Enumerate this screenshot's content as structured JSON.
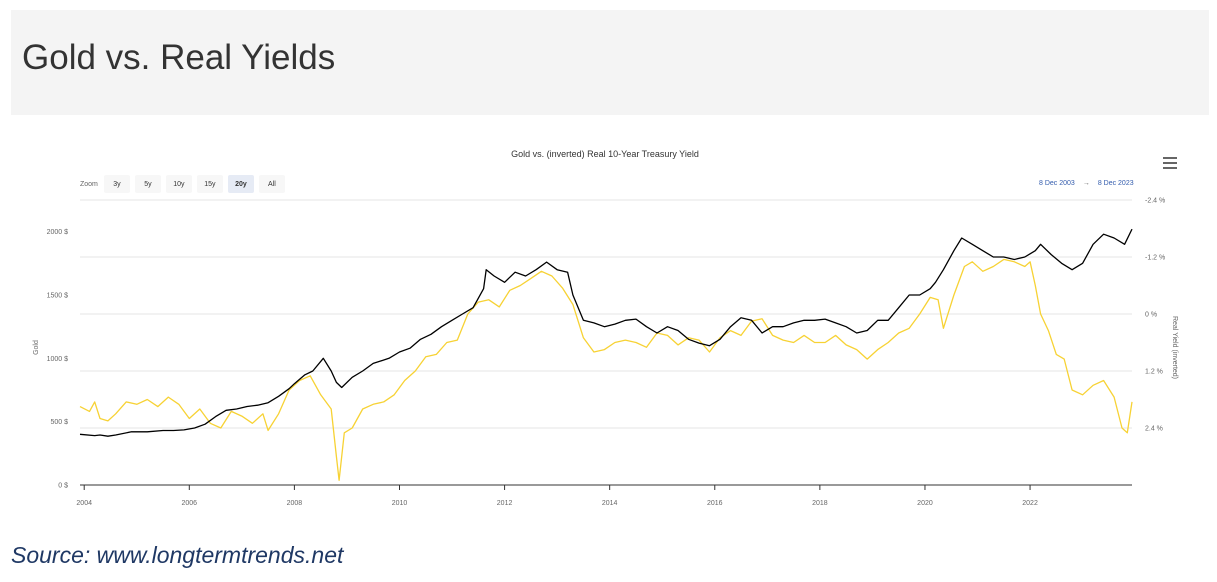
{
  "header": {
    "title": "Gold vs. Real Yields"
  },
  "toolbar": {
    "zoom_label": "Zoom",
    "zoom_buttons": [
      "3y",
      "5y",
      "10y",
      "15y",
      "20y",
      "All"
    ],
    "active_zoom": "20y",
    "range_from": "8 Dec 2003",
    "range_arrow": "→",
    "range_to": "8 Dec 2023"
  },
  "source": "Source: www.longtermtrends.net",
  "colors": {
    "gold_series": "#000000",
    "yield_series": "#f7d234",
    "grid": "#e6e6e6"
  },
  "chart_data": {
    "type": "line",
    "title": "Gold vs. (inverted) Real 10-Year Treasury Yield",
    "xlabel": "",
    "ylabel": "Gold",
    "y2label": "Real Yield (inverted)",
    "xlim": [
      2003.92,
      2023.94
    ],
    "ylim": [
      0,
      2250
    ],
    "y2lim": [
      3.6,
      -2.4
    ],
    "y2_inverted": true,
    "x_ticks": [
      "2004",
      "2006",
      "2008",
      "2010",
      "2012",
      "2014",
      "2016",
      "2018",
      "2020",
      "2022"
    ],
    "y_ticks": [
      "0 $",
      "500 $",
      "1000 $",
      "1500 $",
      "2000 $"
    ],
    "y2_ticks": [
      "-2.4 %",
      "-1.2 %",
      "0 %",
      "1.2 %",
      "2.4 %"
    ],
    "grid": true,
    "series": [
      {
        "name": "Gold",
        "axis": "left",
        "x": [
          2003.92,
          2004.2,
          2004.3,
          2004.45,
          2004.6,
          2004.9,
          2005.2,
          2005.5,
          2005.7,
          2005.9,
          2006.1,
          2006.3,
          2006.5,
          2006.7,
          2006.9,
          2007.1,
          2007.3,
          2007.5,
          2007.7,
          2007.9,
          2008.0,
          2008.2,
          2008.35,
          2008.55,
          2008.7,
          2008.8,
          2008.9,
          2009.1,
          2009.3,
          2009.5,
          2009.8,
          2010.0,
          2010.2,
          2010.4,
          2010.6,
          2010.8,
          2011.0,
          2011.2,
          2011.4,
          2011.6,
          2011.65,
          2011.8,
          2012.0,
          2012.2,
          2012.4,
          2012.6,
          2012.8,
          2013.0,
          2013.2,
          2013.3,
          2013.5,
          2013.7,
          2013.9,
          2014.1,
          2014.3,
          2014.5,
          2014.7,
          2014.9,
          2015.1,
          2015.3,
          2015.5,
          2015.7,
          2015.9,
          2016.1,
          2016.3,
          2016.5,
          2016.7,
          2016.9,
          2017.1,
          2017.3,
          2017.5,
          2017.7,
          2017.9,
          2018.1,
          2018.3,
          2018.5,
          2018.7,
          2018.9,
          2019.1,
          2019.3,
          2019.5,
          2019.7,
          2019.9,
          2020.1,
          2020.2,
          2020.35,
          2020.55,
          2020.7,
          2020.9,
          2021.1,
          2021.3,
          2021.5,
          2021.7,
          2021.9,
          2022.1,
          2022.2,
          2022.4,
          2022.6,
          2022.8,
          2023.0,
          2023.2,
          2023.4,
          2023.6,
          2023.8,
          2023.94
        ],
        "y": [
          400,
          390,
          395,
          385,
          395,
          420,
          420,
          430,
          430,
          435,
          450,
          480,
          540,
          590,
          600,
          620,
          630,
          650,
          700,
          760,
          800,
          870,
          900,
          1000,
          900,
          810,
          770,
          850,
          900,
          960,
          1000,
          1050,
          1080,
          1150,
          1190,
          1250,
          1300,
          1350,
          1400,
          1550,
          1700,
          1650,
          1600,
          1680,
          1650,
          1700,
          1760,
          1700,
          1680,
          1500,
          1300,
          1280,
          1250,
          1270,
          1300,
          1310,
          1250,
          1200,
          1250,
          1220,
          1150,
          1120,
          1100,
          1150,
          1250,
          1320,
          1300,
          1200,
          1250,
          1250,
          1280,
          1300,
          1300,
          1310,
          1280,
          1250,
          1200,
          1220,
          1300,
          1300,
          1400,
          1500,
          1500,
          1550,
          1600,
          1700,
          1850,
          1950,
          1900,
          1850,
          1800,
          1800,
          1780,
          1800,
          1850,
          1900,
          1820,
          1750,
          1700,
          1750,
          1900,
          1980,
          1950,
          1900,
          2020
        ]
      },
      {
        "name": "Real Yield (inverted)",
        "axis": "right",
        "x": [
          2003.92,
          2004.1,
          2004.2,
          2004.3,
          2004.45,
          2004.6,
          2004.8,
          2005.0,
          2005.2,
          2005.4,
          2005.6,
          2005.8,
          2006.0,
          2006.2,
          2006.4,
          2006.6,
          2006.8,
          2007.0,
          2007.2,
          2007.4,
          2007.5,
          2007.7,
          2007.9,
          2008.1,
          2008.3,
          2008.5,
          2008.7,
          2008.8,
          2008.85,
          2008.95,
          2009.1,
          2009.3,
          2009.5,
          2009.7,
          2009.9,
          2010.1,
          2010.3,
          2010.5,
          2010.7,
          2010.9,
          2011.1,
          2011.3,
          2011.5,
          2011.7,
          2011.9,
          2012.1,
          2012.3,
          2012.5,
          2012.7,
          2012.9,
          2013.1,
          2013.3,
          2013.5,
          2013.7,
          2013.9,
          2014.1,
          2014.3,
          2014.5,
          2014.7,
          2014.9,
          2015.1,
          2015.3,
          2015.5,
          2015.7,
          2015.9,
          2016.1,
          2016.3,
          2016.5,
          2016.7,
          2016.9,
          2017.1,
          2017.3,
          2017.5,
          2017.7,
          2017.9,
          2018.1,
          2018.3,
          2018.5,
          2018.7,
          2018.9,
          2019.1,
          2019.3,
          2019.5,
          2019.7,
          2019.9,
          2020.1,
          2020.25,
          2020.35,
          2020.55,
          2020.75,
          2020.9,
          2021.1,
          2021.3,
          2021.5,
          2021.7,
          2021.9,
          2022.0,
          2022.1,
          2022.2,
          2022.35,
          2022.5,
          2022.65,
          2022.8,
          2023.0,
          2023.2,
          2023.4,
          2023.6,
          2023.75,
          2023.85,
          2023.94
        ],
        "y": [
          1.95,
          2.05,
          1.85,
          2.2,
          2.25,
          2.1,
          1.85,
          1.9,
          1.8,
          1.95,
          1.75,
          1.9,
          2.2,
          2.0,
          2.3,
          2.4,
          2.05,
          2.15,
          2.3,
          2.1,
          2.45,
          2.1,
          1.6,
          1.4,
          1.3,
          1.7,
          2.0,
          3.0,
          3.5,
          2.5,
          2.4,
          2.0,
          1.9,
          1.85,
          1.7,
          1.4,
          1.2,
          0.9,
          0.85,
          0.6,
          0.55,
          0.0,
          -0.25,
          -0.3,
          -0.15,
          -0.5,
          -0.6,
          -0.75,
          -0.9,
          -0.8,
          -0.55,
          -0.2,
          0.5,
          0.8,
          0.75,
          0.6,
          0.55,
          0.6,
          0.7,
          0.4,
          0.45,
          0.65,
          0.5,
          0.55,
          0.8,
          0.5,
          0.35,
          0.45,
          0.15,
          0.1,
          0.45,
          0.55,
          0.6,
          0.45,
          0.6,
          0.6,
          0.45,
          0.65,
          0.75,
          0.95,
          0.75,
          0.6,
          0.4,
          0.3,
          0.0,
          -0.35,
          -0.3,
          0.3,
          -0.4,
          -1.0,
          -1.1,
          -0.9,
          -1.0,
          -1.15,
          -1.1,
          -1.0,
          -1.1,
          -0.6,
          0.0,
          0.35,
          0.85,
          0.95,
          1.6,
          1.7,
          1.5,
          1.4,
          1.75,
          2.4,
          2.5,
          1.85
        ]
      }
    ]
  }
}
